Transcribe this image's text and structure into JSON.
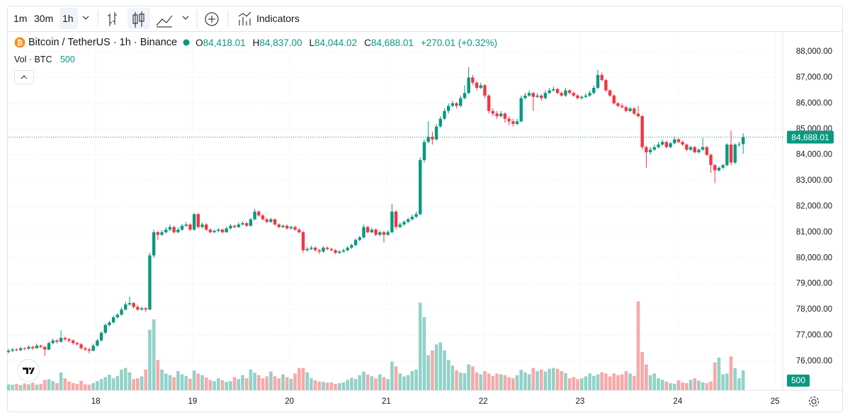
{
  "toolbar": {
    "intervals": [
      "1m",
      "30m",
      "1h"
    ],
    "indicators": "Indicators"
  },
  "legend": {
    "symbol": "Bitcoin / TetherUS · 1h · Binance",
    "o_key": "O",
    "o": "84,418.01",
    "h_key": "H",
    "h": "84,837.00",
    "l_key": "L",
    "l": "84,044.02",
    "c_key": "C",
    "c": "84,688.01",
    "change": "+270.01 (+0.32%)",
    "volume_name": "Vol · BTC",
    "volume": "500"
  },
  "chart_data": {
    "type": "candlestick",
    "up_color": "#089981",
    "down_color": "#f23645",
    "volume_up_color": "#92d2c8",
    "volume_down_color": "#f7a9a8",
    "grid": true,
    "xlim": [
      0,
      191.8
    ],
    "xticks": [
      {
        "value": 21.6,
        "label": "18"
      },
      {
        "value": 45.6,
        "label": "19"
      },
      {
        "value": 69.6,
        "label": "20"
      },
      {
        "value": 93.6,
        "label": "21"
      },
      {
        "value": 117.6,
        "label": "22"
      },
      {
        "value": 141.6,
        "label": "23"
      },
      {
        "value": 165.8,
        "label": "24"
      },
      {
        "value": 189.9,
        "label": "25"
      }
    ],
    "ylim": [
      74870,
      88770
    ],
    "yticks": [
      {
        "value": 76000,
        "label": "76,000.00"
      },
      {
        "value": 77000,
        "label": "77,000.00"
      },
      {
        "value": 78000,
        "label": "78,000.00"
      },
      {
        "value": 79000,
        "label": "79,000.00"
      },
      {
        "value": 80000,
        "label": "80,000.00"
      },
      {
        "value": 81000,
        "label": "81,000.00"
      },
      {
        "value": 82000,
        "label": "82,000.00"
      },
      {
        "value": 83000,
        "label": "83,000.00"
      },
      {
        "value": 84000,
        "label": "84,000.00"
      },
      {
        "value": 85000,
        "label": "85,000.00"
      },
      {
        "value": 86000,
        "label": "86,000.00"
      },
      {
        "value": 87000,
        "label": "87,000.00"
      },
      {
        "value": 88000,
        "label": "88,000.00"
      }
    ],
    "volume_lim": [
      0,
      9000
    ],
    "last_price": {
      "value": 84688.01,
      "label": "84,688.01"
    },
    "last_volume": {
      "value": 500,
      "label": "500"
    },
    "candles": [
      [
        76350,
        76480,
        76300,
        76400
      ],
      [
        76400,
        76520,
        76350,
        76450
      ],
      [
        76450,
        76500,
        76380,
        76420
      ],
      [
        76420,
        76560,
        76400,
        76500
      ],
      [
        76500,
        76540,
        76420,
        76480
      ],
      [
        76480,
        76620,
        76450,
        76550
      ],
      [
        76550,
        76600,
        76440,
        76500
      ],
      [
        76500,
        76680,
        76480,
        76600
      ],
      [
        76600,
        76640,
        76500,
        76550
      ],
      [
        76550,
        76600,
        76200,
        76450
      ],
      [
        76450,
        76760,
        76420,
        76700
      ],
      [
        76700,
        76880,
        76650,
        76800
      ],
      [
        76800,
        76850,
        76680,
        76750
      ],
      [
        76750,
        77200,
        76720,
        76900
      ],
      [
        76900,
        76950,
        76780,
        76850
      ],
      [
        76850,
        76900,
        76720,
        76800
      ],
      [
        76800,
        76850,
        76640,
        76700
      ],
      [
        76700,
        76760,
        76600,
        76650
      ],
      [
        76650,
        76700,
        76450,
        76500
      ],
      [
        76500,
        76560,
        76400,
        76450
      ],
      [
        76450,
        76520,
        76300,
        76400
      ],
      [
        76400,
        76680,
        76380,
        76600
      ],
      [
        76600,
        76860,
        76560,
        76800
      ],
      [
        76800,
        77160,
        76760,
        77100
      ],
      [
        77100,
        77460,
        77050,
        77400
      ],
      [
        77400,
        77560,
        77350,
        77500
      ],
      [
        77500,
        77760,
        77460,
        77700
      ],
      [
        77700,
        77860,
        77650,
        77800
      ],
      [
        77800,
        78080,
        77760,
        78000
      ],
      [
        78000,
        78300,
        77960,
        78200
      ],
      [
        78200,
        78500,
        78150,
        78250
      ],
      [
        78250,
        78300,
        78050,
        78100
      ],
      [
        78100,
        78180,
        77950,
        78000
      ],
      [
        78000,
        78120,
        77960,
        78050
      ],
      [
        78050,
        78100,
        77900,
        78000
      ],
      [
        78000,
        80200,
        77980,
        80100
      ],
      [
        80100,
        81100,
        80000,
        81000
      ],
      [
        81000,
        81050,
        80700,
        80900
      ],
      [
        80900,
        81080,
        80850,
        81000
      ],
      [
        81000,
        81200,
        80950,
        81100
      ],
      [
        81100,
        81300,
        81050,
        81200
      ],
      [
        81200,
        81260,
        80950,
        81000
      ],
      [
        81000,
        81180,
        80960,
        81100
      ],
      [
        81100,
        81320,
        81050,
        81250
      ],
      [
        81250,
        81400,
        81200,
        81300
      ],
      [
        81300,
        81350,
        81050,
        81100
      ],
      [
        81100,
        81750,
        81050,
        81700
      ],
      [
        81700,
        81750,
        81150,
        81200
      ],
      [
        81200,
        81380,
        81150,
        81300
      ],
      [
        81300,
        81350,
        81050,
        81100
      ],
      [
        81100,
        81150,
        80950,
        81000
      ],
      [
        81000,
        81120,
        80960,
        81050
      ],
      [
        81050,
        81160,
        81000,
        81100
      ],
      [
        81100,
        81140,
        80950,
        81000
      ],
      [
        81000,
        81220,
        80980,
        81150
      ],
      [
        81150,
        81320,
        81100,
        81250
      ],
      [
        81250,
        81300,
        81150,
        81200
      ],
      [
        81200,
        81380,
        81160,
        81300
      ],
      [
        81300,
        81420,
        81260,
        81350
      ],
      [
        81350,
        81400,
        81200,
        81250
      ],
      [
        81250,
        81560,
        81220,
        81500
      ],
      [
        81500,
        81900,
        81450,
        81800
      ],
      [
        81800,
        81850,
        81600,
        81650
      ],
      [
        81650,
        81700,
        81450,
        81500
      ],
      [
        81500,
        81550,
        81350,
        81400
      ],
      [
        81400,
        81560,
        81360,
        81500
      ],
      [
        81500,
        81540,
        81250,
        81300
      ],
      [
        81300,
        81350,
        81150,
        81200
      ],
      [
        81200,
        81300,
        81160,
        81250
      ],
      [
        81250,
        81300,
        81100,
        81150
      ],
      [
        81150,
        81260,
        81100,
        81200
      ],
      [
        81200,
        81250,
        81050,
        81100
      ],
      [
        81100,
        81150,
        80950,
        81000
      ],
      [
        81000,
        81050,
        80200,
        80300
      ],
      [
        80300,
        80420,
        80250,
        80350
      ],
      [
        80350,
        80480,
        80300,
        80400
      ],
      [
        80400,
        80450,
        80250,
        80300
      ],
      [
        80300,
        80350,
        80150,
        80250
      ],
      [
        80250,
        80460,
        80200,
        80400
      ],
      [
        80400,
        80450,
        80300,
        80350
      ],
      [
        80350,
        80400,
        80250,
        80300
      ],
      [
        80300,
        80350,
        80150,
        80200
      ],
      [
        80200,
        80300,
        80150,
        80250
      ],
      [
        80250,
        80360,
        80200,
        80300
      ],
      [
        80300,
        80460,
        80250,
        80400
      ],
      [
        80400,
        80560,
        80350,
        80500
      ],
      [
        80500,
        80760,
        80450,
        80700
      ],
      [
        80700,
        80860,
        80650,
        80800
      ],
      [
        80800,
        81300,
        80750,
        81200
      ],
      [
        81200,
        81250,
        80950,
        81000
      ],
      [
        81000,
        81180,
        80960,
        81100
      ],
      [
        81100,
        81150,
        80850,
        80900
      ],
      [
        80900,
        81060,
        80850,
        81000
      ],
      [
        81000,
        81050,
        80600,
        80900
      ],
      [
        80900,
        81080,
        80850,
        81000
      ],
      [
        81000,
        82100,
        80950,
        81800
      ],
      [
        81800,
        81850,
        81100,
        81200
      ],
      [
        81200,
        81380,
        81150,
        81300
      ],
      [
        81300,
        81460,
        81250,
        81400
      ],
      [
        81400,
        81560,
        81350,
        81500
      ],
      [
        81500,
        81680,
        81450,
        81600
      ],
      [
        81600,
        81800,
        81550,
        81700
      ],
      [
        81700,
        83900,
        81650,
        83800
      ],
      [
        83800,
        84600,
        83700,
        84500
      ],
      [
        84500,
        85300,
        84450,
        84700
      ],
      [
        84700,
        84900,
        84400,
        84600
      ],
      [
        84600,
        85200,
        84550,
        85100
      ],
      [
        85100,
        85500,
        85050,
        85400
      ],
      [
        85400,
        85800,
        85350,
        85700
      ],
      [
        85700,
        86000,
        85600,
        85900
      ],
      [
        85900,
        86100,
        85850,
        86000
      ],
      [
        86000,
        86050,
        85800,
        85900
      ],
      [
        85900,
        86300,
        85850,
        86200
      ],
      [
        86200,
        86700,
        86150,
        86400
      ],
      [
        86400,
        87400,
        86350,
        87000
      ],
      [
        87000,
        87100,
        86700,
        86800
      ],
      [
        86800,
        86850,
        86500,
        86600
      ],
      [
        86600,
        86800,
        86550,
        86700
      ],
      [
        86700,
        86750,
        86200,
        86300
      ],
      [
        86300,
        86350,
        85600,
        85700
      ],
      [
        85700,
        85800,
        85500,
        85600
      ],
      [
        85600,
        85700,
        85400,
        85500
      ],
      [
        85500,
        85700,
        85450,
        85600
      ],
      [
        85600,
        85650,
        85250,
        85400
      ],
      [
        85400,
        85500,
        85150,
        85300
      ],
      [
        85300,
        85400,
        85100,
        85200
      ],
      [
        85200,
        85400,
        85150,
        85300
      ],
      [
        85300,
        86300,
        85250,
        86200
      ],
      [
        86200,
        86400,
        86150,
        86300
      ],
      [
        86300,
        86500,
        86250,
        86400
      ],
      [
        86400,
        86450,
        85700,
        86250
      ],
      [
        86250,
        86400,
        86200,
        86300
      ],
      [
        86300,
        86350,
        86100,
        86200
      ],
      [
        86200,
        86500,
        86150,
        86400
      ],
      [
        86400,
        86600,
        86350,
        86500
      ],
      [
        86500,
        86650,
        86450,
        86550
      ],
      [
        86550,
        86600,
        86350,
        86400
      ],
      [
        86400,
        86450,
        86250,
        86300
      ],
      [
        86300,
        86600,
        86250,
        86500
      ],
      [
        86500,
        86550,
        86350,
        86400
      ],
      [
        86400,
        86450,
        86250,
        86300
      ],
      [
        86300,
        86350,
        86150,
        86200
      ],
      [
        86200,
        86300,
        86150,
        86250
      ],
      [
        86250,
        86400,
        86200,
        86300
      ],
      [
        86300,
        86500,
        86250,
        86400
      ],
      [
        86400,
        86700,
        86350,
        86600
      ],
      [
        86600,
        87300,
        86550,
        87100
      ],
      [
        87100,
        87200,
        86850,
        86900
      ],
      [
        86900,
        86950,
        86450,
        86500
      ],
      [
        86500,
        86550,
        86250,
        86300
      ],
      [
        86300,
        86350,
        85950,
        86000
      ],
      [
        86000,
        86050,
        85850,
        85900
      ],
      [
        85900,
        86000,
        85800,
        85850
      ],
      [
        85850,
        85900,
        85650,
        85700
      ],
      [
        85700,
        85850,
        85650,
        85800
      ],
      [
        85800,
        85850,
        85550,
        85600
      ],
      [
        85600,
        85900,
        85450,
        85500
      ],
      [
        85500,
        85550,
        84200,
        84300
      ],
      [
        84300,
        84350,
        83500,
        84100
      ],
      [
        84100,
        84300,
        84000,
        84200
      ],
      [
        84200,
        84400,
        84150,
        84300
      ],
      [
        84300,
        84500,
        84250,
        84400
      ],
      [
        84400,
        84600,
        84350,
        84500
      ],
      [
        84500,
        84550,
        84250,
        84300
      ],
      [
        84300,
        84500,
        84250,
        84450
      ],
      [
        84450,
        84700,
        84400,
        84600
      ],
      [
        84600,
        84650,
        84450,
        84500
      ],
      [
        84500,
        84550,
        84350,
        84400
      ],
      [
        84400,
        84450,
        84150,
        84200
      ],
      [
        84200,
        84350,
        84150,
        84300
      ],
      [
        84300,
        84350,
        84050,
        84100
      ],
      [
        84100,
        84250,
        84050,
        84200
      ],
      [
        84200,
        84650,
        84150,
        84300
      ],
      [
        84300,
        84350,
        83950,
        84000
      ],
      [
        84000,
        84050,
        83300,
        83600
      ],
      [
        83600,
        83650,
        82900,
        83400
      ],
      [
        83400,
        83550,
        83350,
        83500
      ],
      [
        83500,
        83650,
        83450,
        83600
      ],
      [
        83600,
        84450,
        83550,
        84400
      ],
      [
        84400,
        84950,
        83600,
        83700
      ],
      [
        83700,
        84450,
        83650,
        84400
      ],
      [
        84400,
        84500,
        84300,
        84418.01
      ],
      [
        84418.01,
        84837,
        84044.02,
        84688.01
      ]
    ],
    "volumes": [
      150,
      140,
      160,
      130,
      170,
      150,
      190,
      140,
      160,
      260,
      280,
      230,
      180,
      450,
      300,
      220,
      180,
      160,
      240,
      150,
      140,
      180,
      230,
      280,
      330,
      390,
      300,
      360,
      520,
      560,
      450,
      280,
      300,
      350,
      520,
      1520,
      1780,
      760,
      520,
      420,
      380,
      330,
      480,
      400,
      360,
      290,
      500,
      420,
      380,
      320,
      260,
      230,
      300,
      250,
      210,
      230,
      330,
      280,
      380,
      300,
      520,
      440,
      380,
      300,
      350,
      470,
      350,
      300,
      400,
      330,
      290,
      420,
      560,
      560,
      450,
      300,
      250,
      220,
      210,
      190,
      200,
      160,
      180,
      200,
      260,
      310,
      280,
      380,
      470,
      400,
      350,
      300,
      400,
      330,
      280,
      720,
      600,
      420,
      350,
      380,
      480,
      520,
      2200,
      1840,
      880,
      1000,
      1150,
      1200,
      1000,
      760,
      620,
      500,
      440,
      430,
      650,
      600,
      450,
      400,
      480,
      420,
      360,
      420,
      400,
      380,
      330,
      300,
      380,
      510,
      450,
      400,
      560,
      480,
      520,
      470,
      540,
      560,
      540,
      480,
      430,
      300,
      330,
      280,
      300,
      350,
      420,
      360,
      400,
      450,
      420,
      350,
      420,
      380,
      400,
      480,
      420,
      360,
      2230,
      960,
      650,
      380,
      420,
      300,
      260,
      220,
      180,
      160,
      250,
      200,
      180,
      260,
      300,
      240,
      200,
      180,
      220,
      700,
      820,
      400,
      420,
      850,
      560,
      300,
      500
    ]
  }
}
